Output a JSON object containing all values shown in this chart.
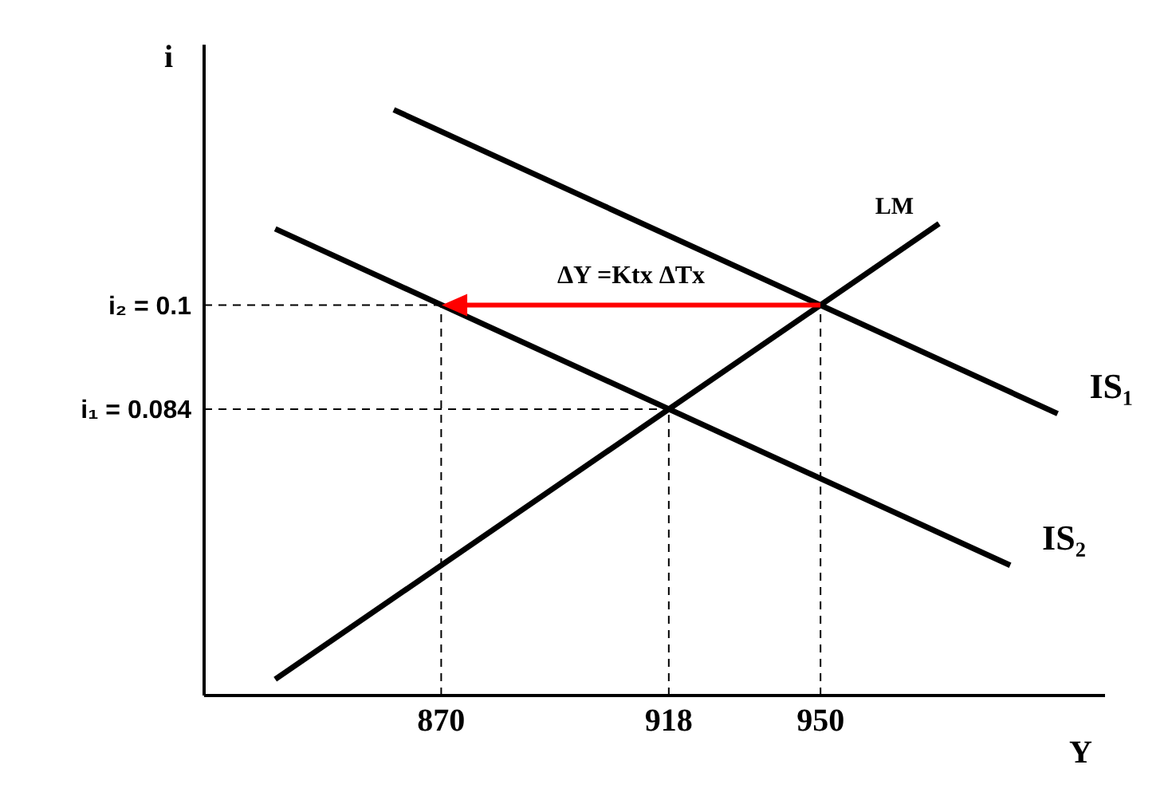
{
  "chart_data": {
    "type": "line",
    "xlabel": "Y",
    "ylabel": "i",
    "xlim": [
      820,
      1010
    ],
    "ylim": [
      0.04,
      0.14
    ],
    "xticks": [
      870,
      918,
      950
    ],
    "yticks": [
      {
        "value": 0.084,
        "label": "i₁ = 0.084"
      },
      {
        "value": 0.1,
        "label": "i₂ = 0.1"
      }
    ],
    "annotations": [
      "ΔY =Ktx ΔTx"
    ],
    "series": [
      {
        "name": "LM",
        "color": "#000000",
        "x": [
          835,
          975
        ],
        "values": [
          0.0425,
          0.1125
        ]
      },
      {
        "name": "IS₁",
        "color": "#000000",
        "x": [
          860,
          1000
        ],
        "values": [
          0.13,
          0.0833
        ]
      },
      {
        "name": "IS₂",
        "color": "#000000",
        "x": [
          835,
          990
        ],
        "values": [
          0.1117,
          0.06
        ]
      },
      {
        "color": "#000000",
        "line_style": "dashed",
        "x": [
          820,
          870
        ],
        "values": [
          0.1,
          0.1
        ]
      },
      {
        "color": "#000000",
        "line_style": "dashed",
        "x": [
          820,
          918
        ],
        "values": [
          0.084,
          0.084
        ]
      },
      {
        "color": "#000000",
        "line_style": "dashed",
        "x": [
          870,
          870
        ],
        "values": [
          0.04,
          0.1
        ]
      },
      {
        "color": "#000000",
        "line_style": "dashed",
        "x": [
          918,
          918
        ],
        "values": [
          0.04,
          0.084
        ]
      },
      {
        "color": "#000000",
        "line_style": "dashed",
        "x": [
          950,
          950
        ],
        "values": [
          0.04,
          0.1
        ]
      }
    ]
  }
}
